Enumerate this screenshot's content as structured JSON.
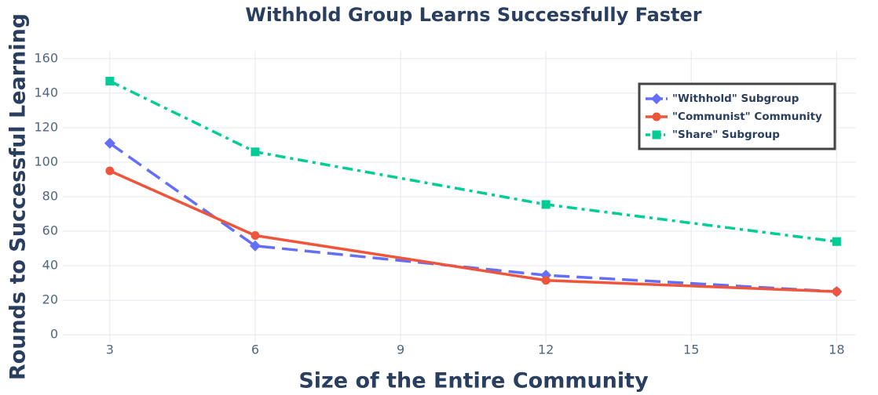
{
  "chart_data": {
    "type": "line",
    "title": "Withhold Group Learns Successfully Faster",
    "x_label": "Size of the Entire Community",
    "y_label": "Rounds to Successful Learning",
    "x": [
      3,
      6,
      12,
      18
    ],
    "series": [
      {
        "name": "\"Withhold\" Subgroup",
        "color": "#636efa",
        "dash": "dash",
        "marker": "diamond",
        "values": [
          111,
          51.5,
          34.5,
          25
        ]
      },
      {
        "name": "\"Communist\" Community",
        "color": "#ef553b",
        "dash": "solid",
        "marker": "circle",
        "values": [
          95,
          57.5,
          31.5,
          25
        ]
      },
      {
        "name": "\"Share\" Subgroup",
        "color": "#00cc96",
        "dash": "dashdot",
        "marker": "square",
        "values": [
          147,
          106,
          75.5,
          54
        ]
      }
    ],
    "xlim": [
      2.03,
      18.4
    ],
    "xticks": [
      3,
      6,
      9,
      12,
      15,
      18
    ],
    "ylim": [
      -4.5,
      164.5
    ],
    "yticks": [
      0,
      20,
      40,
      60,
      80,
      100,
      120,
      140,
      160
    ],
    "grid": true,
    "legend_position": "top-right"
  }
}
